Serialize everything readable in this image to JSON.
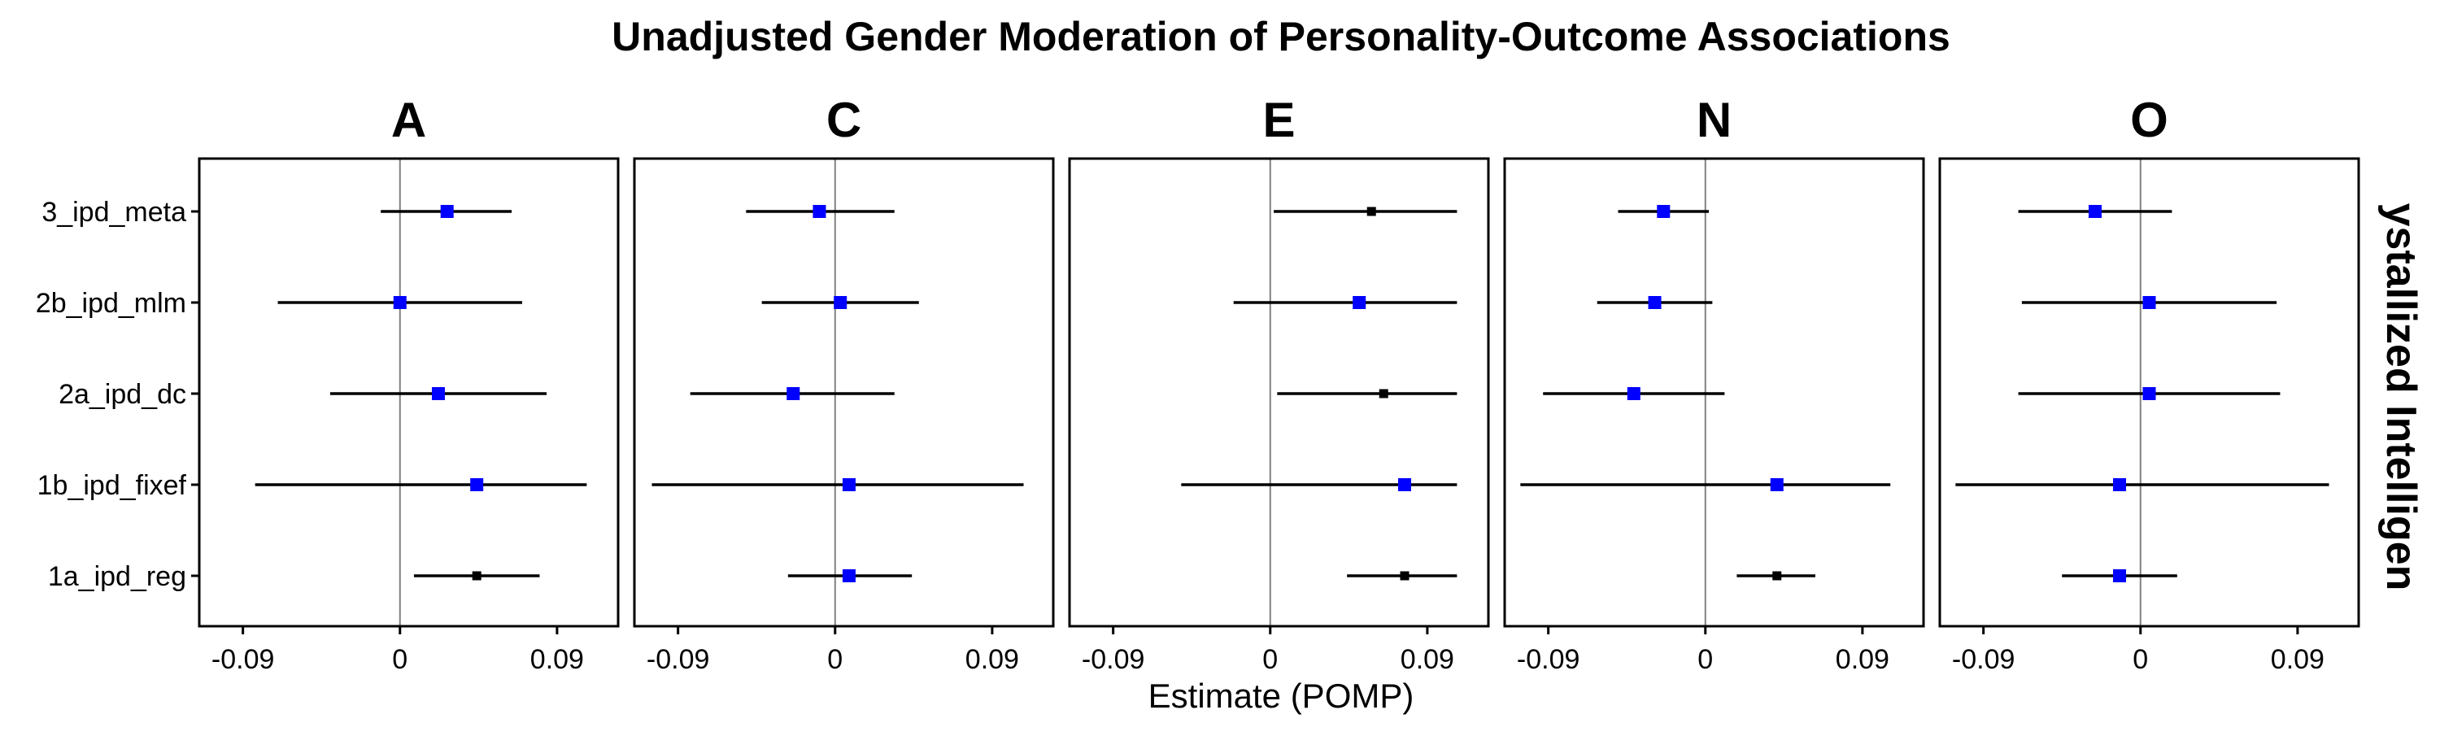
{
  "chart_data": {
    "type": "scatter",
    "title": "Unadjusted Gender Moderation of Personality-Outcome Associations",
    "xlabel": "Estimate (POMP)",
    "ylabel": "",
    "strip_label": "ystallized Intelligen",
    "facets": [
      "A",
      "C",
      "E",
      "N",
      "O"
    ],
    "categories": [
      "3_ipd_meta",
      "2b_ipd_mlm",
      "2a_ipd_dc",
      "1b_ipd_fixef",
      "1a_ipd_reg"
    ],
    "xlim": [
      -0.115,
      0.125
    ],
    "x_ticks": [
      -0.09,
      0,
      0.09
    ],
    "x_tick_labels": [
      "-0.09",
      "0",
      "0.09"
    ],
    "reference_line": 0,
    "grid": false,
    "colors": {
      "significant": "#0000ff",
      "nonsignificant": "#000000",
      "reference": "#808080"
    },
    "panels": [
      {
        "facet": "A",
        "rows": [
          {
            "category": "3_ipd_meta",
            "estimate": 0.027,
            "lower": -0.011,
            "upper": 0.064,
            "color": "blue"
          },
          {
            "category": "2b_ipd_mlm",
            "estimate": 0.0,
            "lower": -0.07,
            "upper": 0.07,
            "color": "blue"
          },
          {
            "category": "2a_ipd_dc",
            "estimate": 0.022,
            "lower": -0.04,
            "upper": 0.084,
            "color": "blue"
          },
          {
            "category": "1b_ipd_fixef",
            "estimate": 0.044,
            "lower": -0.083,
            "upper": 0.107,
            "color": "blue"
          },
          {
            "category": "1a_ipd_reg",
            "estimate": 0.044,
            "lower": 0.008,
            "upper": 0.08,
            "color": "black"
          }
        ]
      },
      {
        "facet": "C",
        "rows": [
          {
            "category": "3_ipd_meta",
            "estimate": -0.009,
            "lower": -0.051,
            "upper": 0.034,
            "color": "blue"
          },
          {
            "category": "2b_ipd_mlm",
            "estimate": 0.003,
            "lower": -0.042,
            "upper": 0.048,
            "color": "blue"
          },
          {
            "category": "2a_ipd_dc",
            "estimate": -0.024,
            "lower": -0.083,
            "upper": 0.034,
            "color": "blue"
          },
          {
            "category": "1b_ipd_fixef",
            "estimate": 0.008,
            "lower": -0.105,
            "upper": 0.108,
            "color": "blue"
          },
          {
            "category": "1a_ipd_reg",
            "estimate": 0.008,
            "lower": -0.027,
            "upper": 0.044,
            "color": "blue"
          }
        ]
      },
      {
        "facet": "E",
        "rows": [
          {
            "category": "3_ipd_meta",
            "estimate": 0.058,
            "lower": 0.002,
            "upper": 0.107,
            "color": "black"
          },
          {
            "category": "2b_ipd_mlm",
            "estimate": 0.051,
            "lower": -0.021,
            "upper": 0.107,
            "color": "blue"
          },
          {
            "category": "2a_ipd_dc",
            "estimate": 0.065,
            "lower": 0.004,
            "upper": 0.107,
            "color": "black"
          },
          {
            "category": "1b_ipd_fixef",
            "estimate": 0.077,
            "lower": -0.051,
            "upper": 0.107,
            "color": "blue"
          },
          {
            "category": "1a_ipd_reg",
            "estimate": 0.077,
            "lower": 0.044,
            "upper": 0.107,
            "color": "black"
          }
        ]
      },
      {
        "facet": "N",
        "rows": [
          {
            "category": "3_ipd_meta",
            "estimate": -0.024,
            "lower": -0.05,
            "upper": 0.002,
            "color": "blue"
          },
          {
            "category": "2b_ipd_mlm",
            "estimate": -0.029,
            "lower": -0.062,
            "upper": 0.004,
            "color": "blue"
          },
          {
            "category": "2a_ipd_dc",
            "estimate": -0.041,
            "lower": -0.093,
            "upper": 0.011,
            "color": "blue"
          },
          {
            "category": "1b_ipd_fixef",
            "estimate": 0.041,
            "lower": -0.106,
            "upper": 0.106,
            "color": "blue"
          },
          {
            "category": "1a_ipd_reg",
            "estimate": 0.041,
            "lower": 0.018,
            "upper": 0.063,
            "color": "black"
          }
        ]
      },
      {
        "facet": "O",
        "rows": [
          {
            "category": "3_ipd_meta",
            "estimate": -0.026,
            "lower": -0.07,
            "upper": 0.018,
            "color": "blue"
          },
          {
            "category": "2b_ipd_mlm",
            "estimate": 0.005,
            "lower": -0.068,
            "upper": 0.078,
            "color": "blue"
          },
          {
            "category": "2a_ipd_dc",
            "estimate": 0.005,
            "lower": -0.07,
            "upper": 0.08,
            "color": "blue"
          },
          {
            "category": "1b_ipd_fixef",
            "estimate": -0.012,
            "lower": -0.106,
            "upper": 0.108,
            "color": "blue"
          },
          {
            "category": "1a_ipd_reg",
            "estimate": -0.012,
            "lower": -0.045,
            "upper": 0.021,
            "color": "blue"
          }
        ]
      }
    ]
  }
}
